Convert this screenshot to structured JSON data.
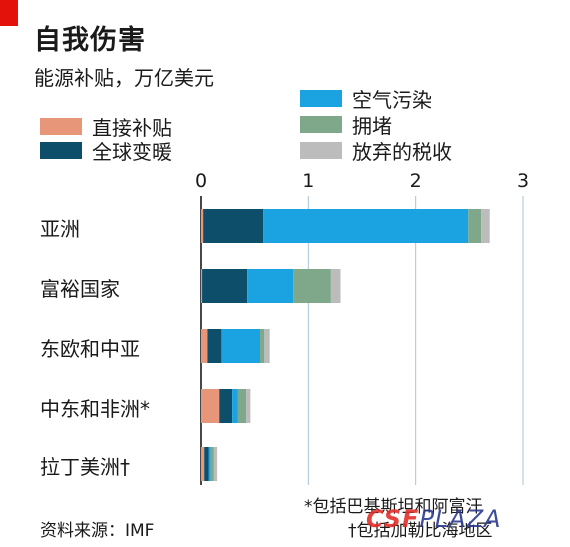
{
  "header": {
    "title": "自我伤害",
    "subtitle": "能源补贴，万亿美元"
  },
  "legend": [
    {
      "label": "直接补贴",
      "color": "#e8967a"
    },
    {
      "label": "全球变暖",
      "color": "#0d4e6a"
    },
    {
      "label": "空气污染",
      "color": "#1aa3e0"
    },
    {
      "label": "拥堵",
      "color": "#7fa88a"
    },
    {
      "label": "放弃的税收",
      "color": "#bcbcbc"
    }
  ],
  "chart_data": {
    "type": "bar",
    "orientation": "horizontal",
    "stacked": true,
    "title": "自我伤害",
    "subtitle": "能源补贴，万亿美元",
    "xlim": [
      0,
      3
    ],
    "ticks": [
      "0",
      "1",
      "2",
      "3"
    ],
    "categories": [
      "亚洲",
      "富裕国家",
      "东欧和中亚",
      "中东和非洲*",
      "拉丁美洲†"
    ],
    "series": [
      {
        "name": "直接补贴",
        "color": "#e8967a",
        "values": [
          0.02,
          0.01,
          0.06,
          0.17,
          0.03
        ]
      },
      {
        "name": "全球变暖",
        "color": "#0d4e6a",
        "values": [
          0.56,
          0.42,
          0.13,
          0.12,
          0.04
        ]
      },
      {
        "name": "空气污染",
        "color": "#1aa3e0",
        "values": [
          1.91,
          0.43,
          0.36,
          0.05,
          0.02
        ]
      },
      {
        "name": "拥堵",
        "color": "#7fa88a",
        "values": [
          0.12,
          0.35,
          0.04,
          0.08,
          0.03
        ]
      },
      {
        "name": "放弃的税收",
        "color": "#bcbcbc",
        "values": [
          0.08,
          0.09,
          0.05,
          0.04,
          0.03
        ]
      }
    ],
    "grid": true
  },
  "footnotes": {
    "asterisk": "*包括巴基斯坦和阿富汗",
    "dagger": "†包括加勒比海地区",
    "source": "资料来源：IMF"
  },
  "watermark": {
    "main": "CSF",
    "tail": "PLAZA"
  }
}
